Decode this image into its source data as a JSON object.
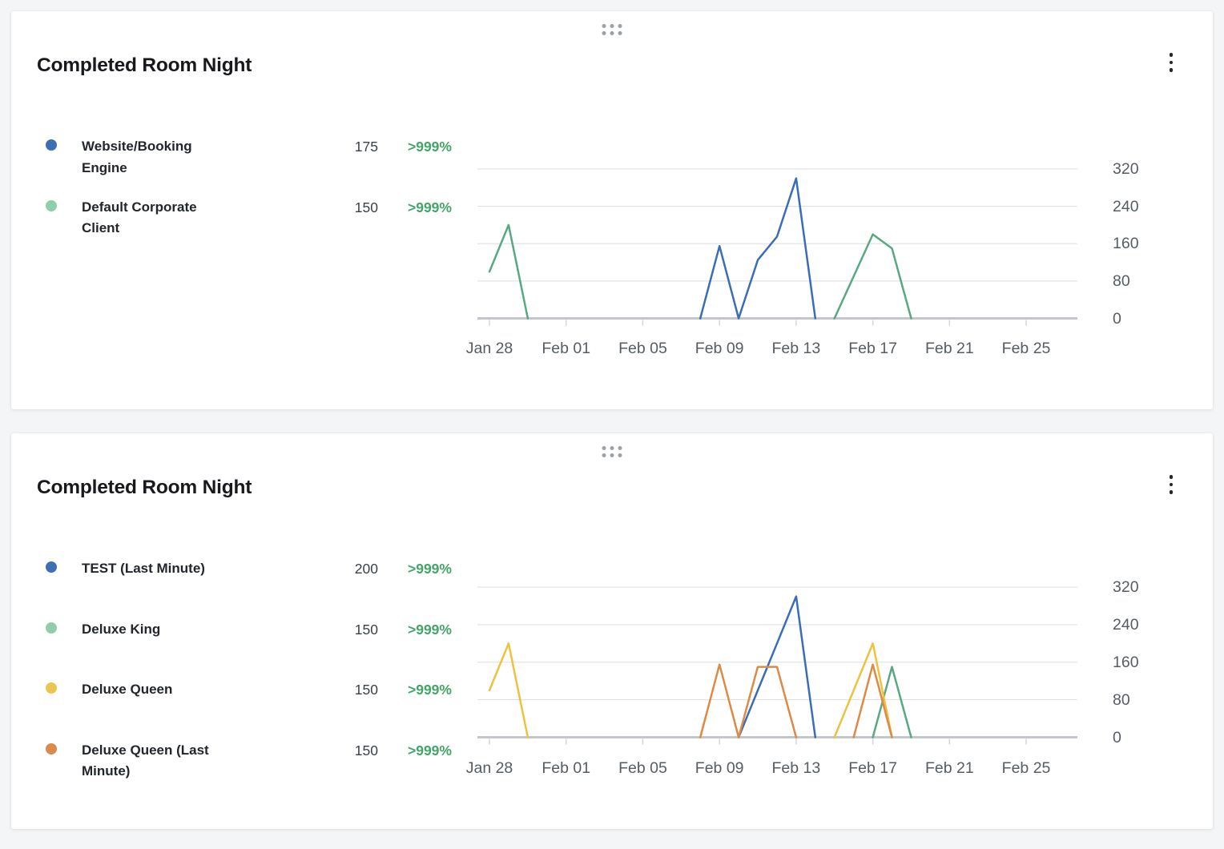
{
  "page": {
    "background": "#f4f5f6"
  },
  "colors": {
    "positive_change": "#43A567",
    "gridline": "#dcdee1",
    "axis_baseline": "#c3c6cb",
    "axis_tick": "#d3d5d9",
    "axis_text": "#565c64"
  },
  "cards": [
    {
      "title": "Completed Room Night",
      "drag_handle_icon": "grip-dots",
      "menu_icon": "kebab-vertical",
      "legend": [
        {
          "label": "Website/Booking Engine",
          "value": "175",
          "change": ">999%",
          "dot_color": "#3D6FB5"
        },
        {
          "label": "Default Corporate Client",
          "value": "150",
          "change": ">999%",
          "dot_color": "#90CDAB"
        }
      ],
      "chart_data": {
        "type": "line",
        "title": "Completed Room Night",
        "x_start_label": "Jan 28",
        "x_step": "1 day (day 0 = Jan 28)",
        "x_tick_labels": [
          "Jan 28",
          "Feb 01",
          "Feb 05",
          "Feb 09",
          "Feb 13",
          "Feb 17",
          "Feb 21",
          "Feb 25"
        ],
        "x_tick_days": [
          0,
          4,
          8,
          12,
          16,
          20,
          24,
          28
        ],
        "y_tick_labels": [
          "0",
          "80",
          "160",
          "240",
          "320"
        ],
        "y_tick_values": [
          0,
          80,
          160,
          240,
          320
        ],
        "ylim": [
          0,
          320
        ],
        "grid": "horizontal",
        "y_axis_position": "right",
        "legend_position": "left",
        "series": [
          {
            "name": "Website/Booking Engine",
            "line_color": "#3A6DB5",
            "segments": [
              [
                [
                  11,
                  0
                ],
                [
                  12,
                  155
                ],
                [
                  13,
                  0
                ],
                [
                  14,
                  125
                ],
                [
                  15,
                  175
                ],
                [
                  16,
                  300
                ],
                [
                  17,
                  0
                ]
              ]
            ]
          },
          {
            "name": "Default Corporate Client",
            "line_color": "#58A981",
            "segments": [
              [
                [
                  0,
                  100
                ],
                [
                  1,
                  200
                ],
                [
                  2,
                  0
                ]
              ],
              [
                [
                  18,
                  0
                ],
                [
                  19,
                  90
                ],
                [
                  20,
                  180
                ],
                [
                  21,
                  150
                ],
                [
                  22,
                  0
                ]
              ]
            ]
          }
        ]
      }
    },
    {
      "title": "Completed Room Night",
      "drag_handle_icon": "grip-dots",
      "menu_icon": "kebab-vertical",
      "legend": [
        {
          "label": "TEST (Last Minute)",
          "value": "200",
          "change": ">999%",
          "dot_color": "#3D6FB5"
        },
        {
          "label": "Deluxe King",
          "value": "150",
          "change": ">999%",
          "dot_color": "#90CDAB"
        },
        {
          "label": "Deluxe Queen",
          "value": "150",
          "change": ">999%",
          "dot_color": "#E9C750"
        },
        {
          "label": "Deluxe Queen (Last Minute)",
          "value": "150",
          "change": ">999%",
          "dot_color": "#DB8A4D"
        }
      ],
      "chart_data": {
        "type": "line",
        "title": "Completed Room Night",
        "x_start_label": "Jan 28",
        "x_step": "1 day (day 0 = Jan 28)",
        "x_tick_labels": [
          "Jan 28",
          "Feb 01",
          "Feb 05",
          "Feb 09",
          "Feb 13",
          "Feb 17",
          "Feb 21",
          "Feb 25"
        ],
        "x_tick_days": [
          0,
          4,
          8,
          12,
          16,
          20,
          24,
          28
        ],
        "y_tick_labels": [
          "0",
          "80",
          "160",
          "240",
          "320"
        ],
        "y_tick_values": [
          0,
          80,
          160,
          240,
          320
        ],
        "ylim": [
          0,
          320
        ],
        "grid": "horizontal",
        "y_axis_position": "right",
        "legend_position": "left",
        "series": [
          {
            "name": "TEST (Last Minute)",
            "line_color": "#3A6DB5",
            "segments": [
              [
                [
                  13,
                  0
                ],
                [
                  14,
                  100
                ],
                [
                  15,
                  200
                ],
                [
                  16,
                  300
                ],
                [
                  17,
                  0
                ]
              ]
            ]
          },
          {
            "name": "Deluxe King",
            "line_color": "#58A981",
            "segments": [
              [
                [
                  20,
                  0
                ],
                [
                  21,
                  150
                ],
                [
                  22,
                  0
                ]
              ]
            ]
          },
          {
            "name": "Deluxe Queen",
            "line_color": "#EEC23E",
            "segments": [
              [
                [
                  0,
                  100
                ],
                [
                  1,
                  200
                ],
                [
                  2,
                  0
                ]
              ],
              [
                [
                  18,
                  0
                ],
                [
                  19,
                  100
                ],
                [
                  20,
                  200
                ],
                [
                  21,
                  0
                ]
              ]
            ]
          },
          {
            "name": "Deluxe Queen (Last Minute)",
            "line_color": "#DC8A45",
            "segments": [
              [
                [
                  11,
                  0
                ],
                [
                  12,
                  155
                ],
                [
                  13,
                  0
                ],
                [
                  14,
                  150
                ],
                [
                  15,
                  150
                ],
                [
                  16,
                  0
                ]
              ],
              [
                [
                  19,
                  0
                ],
                [
                  20,
                  155
                ],
                [
                  21,
                  0
                ]
              ]
            ]
          }
        ]
      }
    }
  ]
}
